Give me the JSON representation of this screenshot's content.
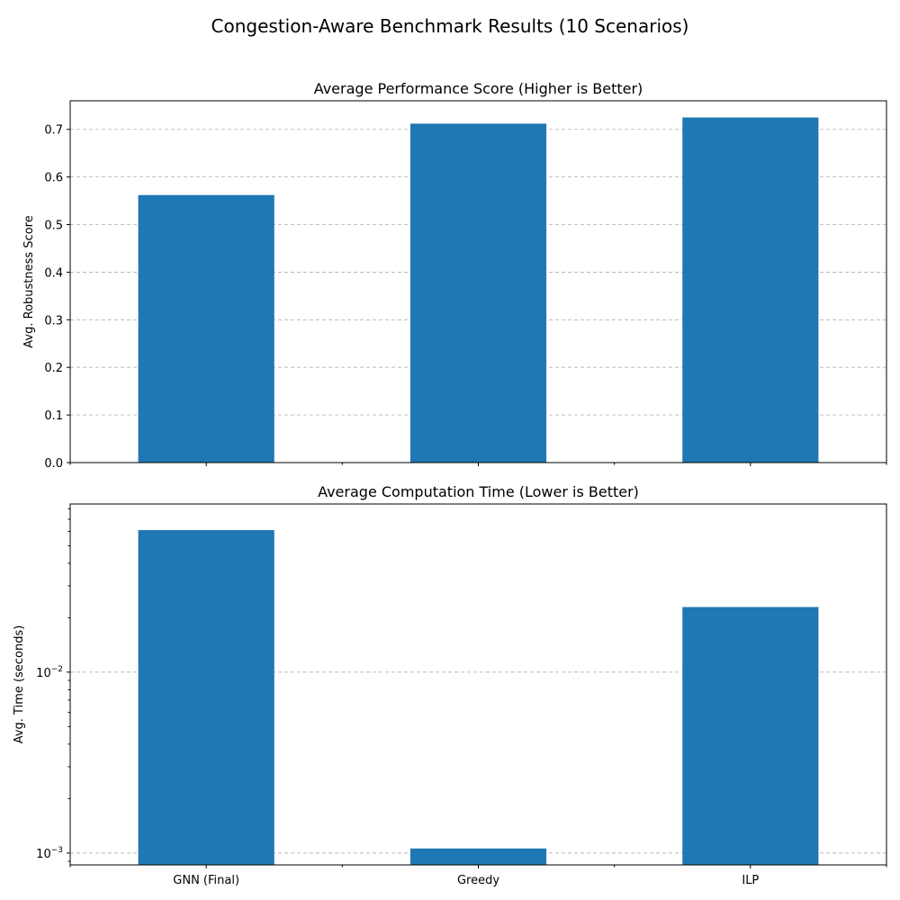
{
  "suptitle": "Congestion-Aware Benchmark Results (10 Scenarios)",
  "categories": [
    "GNN (Final)",
    "Greedy",
    "ILP"
  ],
  "colors": {
    "bar": "#1f77b4"
  },
  "chart_data": [
    {
      "type": "bar",
      "title": "Average Performance Score (Higher is Better)",
      "ylabel": "Avg. Robustness Score",
      "xlabel": "",
      "categories": [
        "GNN (Final)",
        "Greedy",
        "ILP"
      ],
      "values": [
        0.562,
        0.712,
        0.725
      ],
      "yscale": "linear",
      "ylim": [
        0,
        0.76
      ],
      "yticks": [
        0.0,
        0.1,
        0.2,
        0.3,
        0.4,
        0.5,
        0.6,
        0.7
      ],
      "ytick_labels": [
        "0.0",
        "0.1",
        "0.2",
        "0.3",
        "0.4",
        "0.5",
        "0.6",
        "0.7"
      ],
      "grid": "y",
      "show_xtick_labels": false
    },
    {
      "type": "bar",
      "title": "Average Computation Time (Lower is Better)",
      "ylabel": "Avg. Time (seconds)",
      "xlabel": "",
      "categories": [
        "GNN (Final)",
        "Greedy",
        "ILP"
      ],
      "values": [
        0.061,
        0.00106,
        0.0229
      ],
      "yscale": "log",
      "ylim": [
        0.00086,
        0.085
      ],
      "yticks": [
        0.001,
        0.01
      ],
      "ytick_labels": [
        {
          "base": "10",
          "exp": "−3"
        },
        {
          "base": "10",
          "exp": "−2"
        }
      ],
      "grid": "y",
      "show_xtick_labels": true
    }
  ]
}
